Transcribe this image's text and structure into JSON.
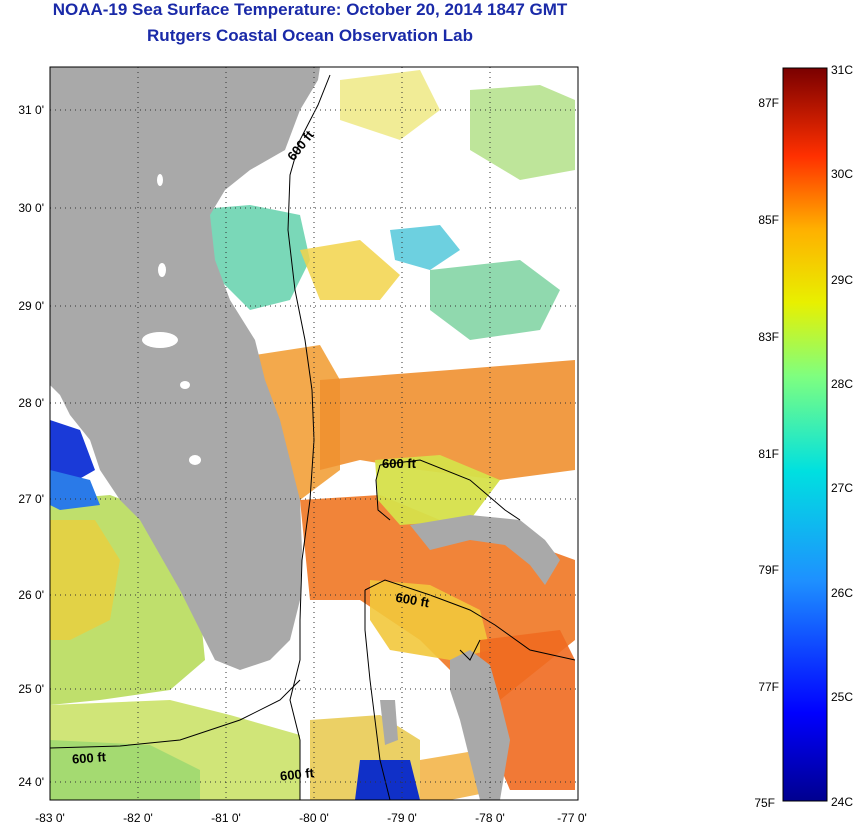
{
  "header": {
    "title": "NOAA-19 Sea Surface Temperature:  October 20, 2014 1847 GMT",
    "subtitle": "Rutgers Coastal Ocean Observation Lab"
  },
  "map": {
    "lat_labels": [
      "31 0'",
      "30 0'",
      "29 0'",
      "28 0'",
      "27 0'",
      "26 0'",
      "25 0'",
      "24 0'"
    ],
    "lon_labels": [
      "-83 0'",
      "-82 0'",
      "-81 0'",
      "-80 0'",
      "-79 0'",
      "-78 0'",
      "-77 0'"
    ],
    "contour_label": "600 ft",
    "colors": {
      "land": "#a9a9a9",
      "cloud": "#ffffff",
      "warm": "#f08a2c",
      "mid": "#f2c84a",
      "cool": "#8fd27a",
      "cold": "#48c4d8"
    }
  },
  "colorbar": {
    "celsius_labels": [
      "31C",
      "30C",
      "29C",
      "28C",
      "27C",
      "26C",
      "25C",
      "24C"
    ],
    "fahrenheit_labels": [
      "87F",
      "85F",
      "83F",
      "81F",
      "79F",
      "77F",
      "75F"
    ]
  }
}
